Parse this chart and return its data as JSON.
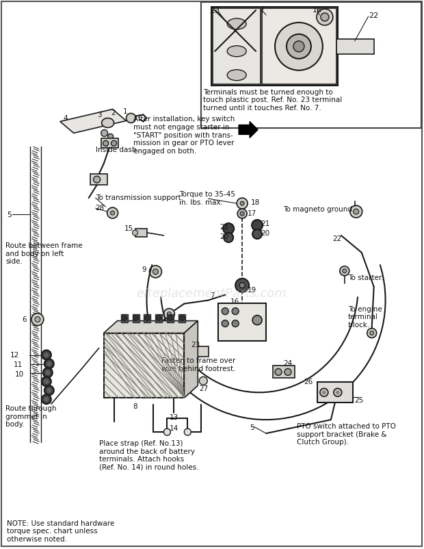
{
  "bg_color": "#ffffff",
  "line_color": "#1a1a1a",
  "text_color": "#111111",
  "watermark": "eReplacementParts.com",
  "note_text": "NOTE: Use standard hardware\ntorque spec. chart unless\notherwise noted.",
  "inset_caption": "Terminals must be turned enough to\ntouch plastic post. Ref. No. 23 terminal\nturned until it touches Ref. No. 7.",
  "callout_text": "After installation, key switch\nmust not engage starter in\n\"START\" position with trans-\nmission in gear or PTO lever\nengaged on both.",
  "torque_text": "Torque to 35-45\nin. lbs. max.",
  "fasten_text": "Fasten to frame over\nwire behind footrest.",
  "inside_dash_text": "Inside dash.",
  "trans_support_text": "To transmission support.",
  "route_frame_text": "Route between frame\nand body on left\nside.",
  "route_grommet_text": "Route through\ngrommet in\nbody.",
  "mag_ground_text": "To magneto ground.",
  "starter_text": "To starter.",
  "engine_block_text": "To engine\nterminal\nblock.",
  "pto_switch_text": "PTO switch attached to PTO\nsupport bracket (Brake &\nClutch Group).",
  "place_strap_text": "Place strap (Ref. No.13)\naround the back of battery\nterminals. Attach hooks\n(Ref. No. 14) in round holes."
}
